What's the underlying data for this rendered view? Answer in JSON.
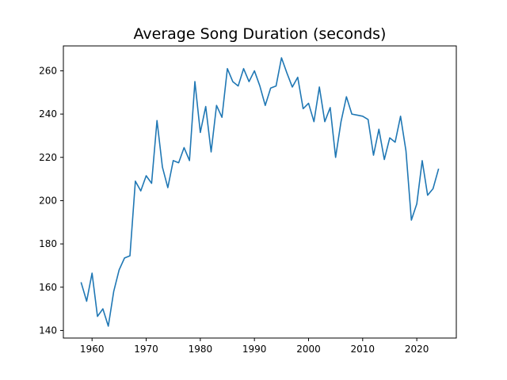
{
  "chart_data": {
    "type": "line",
    "title": "Average Song Duration (seconds)",
    "xlabel": "",
    "ylabel": "",
    "xlim": [
      1954.7,
      2027.3
    ],
    "ylim": [
      136.5,
      271.5
    ],
    "x_ticks": [
      1960,
      1970,
      1980,
      1990,
      2000,
      2010,
      2020
    ],
    "y_ticks": [
      140,
      160,
      180,
      200,
      220,
      240,
      260
    ],
    "grid": false,
    "legend": "none",
    "series": [
      {
        "color": "#1f77b4",
        "x": [
          1958,
          1959,
          1960,
          1961,
          1962,
          1963,
          1964,
          1965,
          1966,
          1967,
          1968,
          1969,
          1970,
          1971,
          1972,
          1973,
          1974,
          1975,
          1976,
          1977,
          1978,
          1979,
          1980,
          1981,
          1982,
          1983,
          1984,
          1985,
          1986,
          1987,
          1988,
          1989,
          1990,
          1991,
          1992,
          1993,
          1994,
          1995,
          1996,
          1997,
          1998,
          1999,
          2000,
          2001,
          2002,
          2003,
          2004,
          2005,
          2006,
          2007,
          2008,
          2009,
          2010,
          2011,
          2012,
          2013,
          2014,
          2015,
          2016,
          2017,
          2018,
          2019,
          2020,
          2021,
          2022,
          2023,
          2024
        ],
        "values": [
          162,
          153.5,
          166.5,
          146.5,
          150,
          142,
          158,
          168,
          173.5,
          174.5,
          209,
          204.5,
          211.5,
          208,
          237,
          215.5,
          206,
          218.5,
          217.5,
          224.5,
          218.5,
          255,
          231.5,
          243.5,
          222.5,
          244,
          238.5,
          261,
          255,
          253,
          261,
          255,
          260,
          253,
          244,
          252,
          253,
          266,
          259,
          252.5,
          257,
          242.5,
          245,
          236.5,
          252.5,
          236.5,
          243,
          220,
          236.5,
          248,
          240,
          239.5,
          239,
          237.5,
          221,
          233,
          219,
          229,
          227,
          239,
          223,
          191,
          198.5,
          218.5,
          202.5,
          205.5,
          214.5
        ]
      }
    ]
  }
}
